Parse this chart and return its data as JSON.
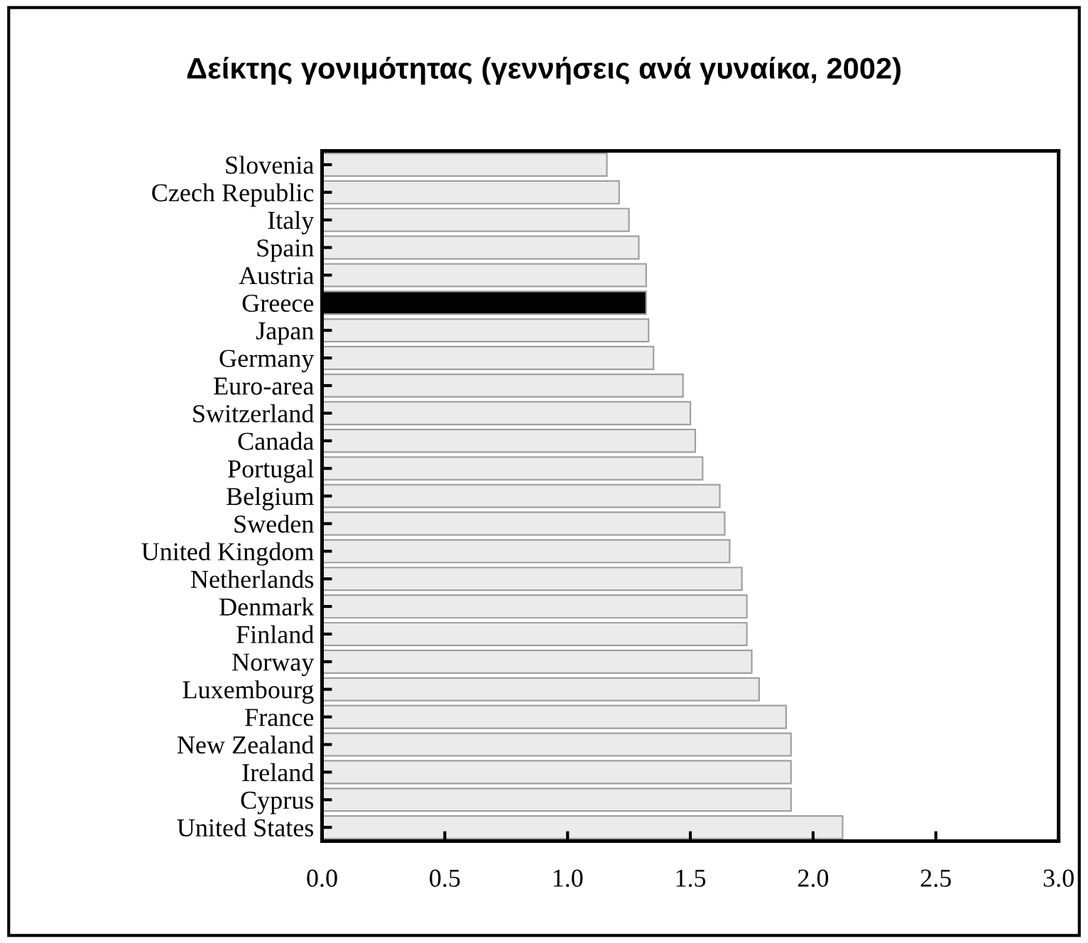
{
  "chart_data": {
    "type": "bar",
    "orientation": "horizontal",
    "title": "Δείκτης γονιμότητας (γεννήσεις ανά γυναίκα, 2002)",
    "categories": [
      "Slovenia",
      "Czech Republic",
      "Italy",
      "Spain",
      "Austria",
      "Greece",
      "Japan",
      "Germany",
      "Euro-area",
      "Switzerland",
      "Canada",
      "Portugal",
      "Belgium",
      "Sweden",
      "United Kingdom",
      "Netherlands",
      "Denmark",
      "Finland",
      "Norway",
      "Luxembourg",
      "France",
      "New Zealand",
      "Ireland",
      "Cyprus",
      "United States"
    ],
    "values": [
      1.16,
      1.21,
      1.25,
      1.29,
      1.32,
      1.32,
      1.33,
      1.35,
      1.47,
      1.5,
      1.52,
      1.55,
      1.62,
      1.64,
      1.66,
      1.71,
      1.73,
      1.73,
      1.75,
      1.78,
      1.89,
      1.91,
      1.91,
      1.91,
      2.12
    ],
    "colors": [
      "#ebebeb",
      "#ebebeb",
      "#ebebeb",
      "#ebebeb",
      "#ebebeb",
      "#000000",
      "#ebebeb",
      "#ebebeb",
      "#ebebeb",
      "#ebebeb",
      "#ebebeb",
      "#ebebeb",
      "#ebebeb",
      "#ebebeb",
      "#ebebeb",
      "#ebebeb",
      "#ebebeb",
      "#ebebeb",
      "#ebebeb",
      "#ebebeb",
      "#ebebeb",
      "#ebebeb",
      "#ebebeb",
      "#ebebeb",
      "#ebebeb"
    ],
    "xlim": [
      0,
      3
    ],
    "xticks": [
      {
        "value": 0,
        "label": "0.0"
      },
      {
        "value": 0.5,
        "label": "0.5"
      },
      {
        "value": 1,
        "label": "1.0"
      },
      {
        "value": 1.5,
        "label": "1.5"
      },
      {
        "value": 2,
        "label": "2.0"
      },
      {
        "value": 2.5,
        "label": "2.5"
      },
      {
        "value": 3,
        "label": "3.0"
      }
    ],
    "grid": false,
    "legend": false
  }
}
